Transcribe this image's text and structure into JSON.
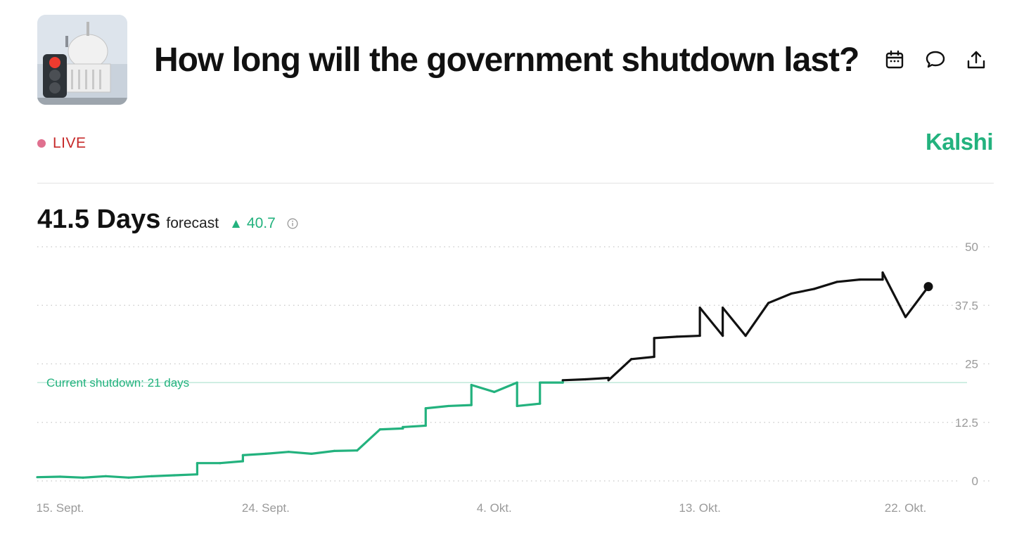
{
  "header": {
    "title": "How long will the government shutdown last?",
    "live_label": "LIVE",
    "brand": "Kalshi",
    "icons": [
      "calendar-icon",
      "comment-icon",
      "share-icon"
    ]
  },
  "summary": {
    "value": "41.5 Days",
    "label": "forecast",
    "change": "40.7"
  },
  "colors": {
    "accent": "#23b27e",
    "line_before": "#23b27e",
    "line_after": "#111111",
    "live": "#c62828"
  },
  "chart_data": {
    "type": "line",
    "title": "",
    "xlabel": "",
    "ylabel": "",
    "ylim": [
      0,
      50
    ],
    "y_ticks": [
      "0",
      "12.5",
      "25",
      "37.5",
      "50"
    ],
    "y_tick_values": [
      0,
      12.5,
      25,
      37.5,
      50
    ],
    "x_tick_labels": [
      "15. Sept.",
      "24. Sept.",
      "4. Okt.",
      "13. Okt.",
      "22. Okt."
    ],
    "x_tick_values": [
      "2025-09-15",
      "2025-09-24",
      "2025-10-04",
      "2025-10-13",
      "2025-10-22"
    ],
    "grid": true,
    "reference_line": {
      "value": 21,
      "label": "Current shutdown: 21 days"
    },
    "series": [
      {
        "x": [
          "2025-09-14",
          "2025-09-15",
          "2025-09-16",
          "2025-09-17",
          "2025-09-18",
          "2025-09-19",
          "2025-09-20",
          "2025-09-21",
          "2025-09-21",
          "2025-09-22",
          "2025-09-23",
          "2025-09-23",
          "2025-09-23",
          "2025-09-24",
          "2025-09-25",
          "2025-09-26",
          "2025-09-27",
          "2025-09-28",
          "2025-09-29",
          "2025-09-30",
          "2025-09-30",
          "2025-10-01",
          "2025-10-01",
          "2025-10-02",
          "2025-10-03",
          "2025-10-03",
          "2025-10-04",
          "2025-10-05",
          "2025-10-05",
          "2025-10-06",
          "2025-10-06",
          "2025-10-07",
          "2025-10-07",
          "2025-10-08",
          "2025-10-09",
          "2025-10-09",
          "2025-10-10",
          "2025-10-11",
          "2025-10-11",
          "2025-10-12",
          "2025-10-13",
          "2025-10-13",
          "2025-10-14",
          "2025-10-14",
          "2025-10-15",
          "2025-10-15",
          "2025-10-16",
          "2025-10-17",
          "2025-10-18",
          "2025-10-19",
          "2025-10-20",
          "2025-10-21",
          "2025-10-21",
          "2025-10-22",
          "2025-10-23"
        ],
        "values": [
          0.8,
          0.9,
          0.7,
          1.0,
          0.7,
          1.0,
          1.2,
          1.4,
          3.8,
          3.8,
          4.2,
          4.6,
          5.5,
          5.8,
          6.2,
          5.8,
          6.4,
          6.5,
          11.0,
          11.2,
          11.5,
          11.8,
          15.5,
          16.0,
          16.2,
          20.5,
          19.0,
          21.0,
          16.0,
          16.5,
          21.0,
          21.0,
          21.5,
          21.7,
          22.0,
          21.5,
          26.0,
          26.5,
          30.5,
          30.8,
          31.0,
          37.0,
          31.0,
          37.0,
          31.0,
          31.0,
          38.0,
          40.0,
          41.0,
          42.5,
          43.0,
          43.0,
          44.5,
          35.0,
          41.5
        ]
      }
    ]
  }
}
